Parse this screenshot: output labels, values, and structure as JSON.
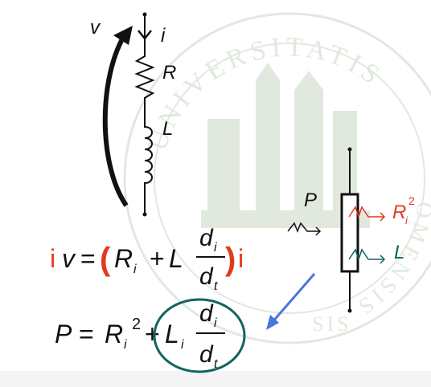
{
  "colors": {
    "ink": "#111111",
    "red": "#e23a1f",
    "teal": "#12655e",
    "blue": "#4a74e0",
    "watermark": "#c9d8c4"
  },
  "watermark_text": {
    "top_arc": "UNIVERSITATIS",
    "bottom_arc": "SIS",
    "right_arc": "OMENSIS"
  },
  "circuit": {
    "voltage_label": "v",
    "current_label": "i",
    "resistor_label": "R",
    "inductor_label": "L"
  },
  "equation1": {
    "lhs_i": "i",
    "lhs_v": "v",
    "equals": "=",
    "open_paren": "(",
    "R": "R",
    "R_sub": "i",
    "plus": "+",
    "L": "L",
    "frac_num": "d",
    "frac_num_sub": "i",
    "frac_den": "d",
    "frac_den_sub": "t",
    "close_paren": ")",
    "rhs_i": "i"
  },
  "equation2": {
    "P": "P",
    "equals": "=",
    "R": "R",
    "R_sub": "i",
    "R_sup": "2",
    "plus": "+",
    "L": "L",
    "L_sub": "i",
    "frac_num": "d",
    "frac_num_sub": "i",
    "frac_den": "d",
    "frac_den_sub": "t"
  },
  "power_diagram": {
    "input_label": "P",
    "resistive_label": "R",
    "resistive_sub": "i",
    "resistive_sup": "2",
    "inductive_label": "L"
  },
  "icons": [
    "arrow-head-icon",
    "wave-arrow-icon",
    "pointer-arrow-icon"
  ]
}
